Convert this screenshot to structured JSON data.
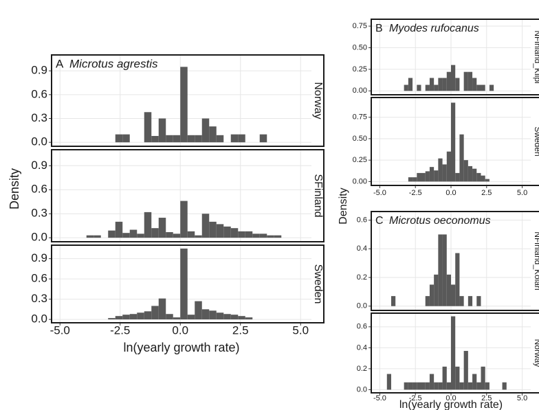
{
  "chart_data": [
    {
      "type": "histogram",
      "label": "A",
      "title": "Microtus agrestis",
      "xlabel": "ln(yearly growth rate)",
      "ylabel": "Density",
      "color": "#595959",
      "xlim": [
        -5.35,
        5.45
      ],
      "xticks": [
        {
          "value": -5,
          "label": "-5.0"
        },
        -2.5,
        {
          "value": 0,
          "label": "0.0"
        },
        2.5,
        {
          "value": 5,
          "label": "5.0"
        }
      ],
      "bins": [
        -4.5,
        -4.2,
        -3.9,
        -3.6,
        -3.3,
        -3.0,
        -2.7,
        -2.4,
        -2.1,
        -1.8,
        -1.5,
        -1.2,
        -0.9,
        -0.6,
        -0.3,
        0,
        0.3,
        0.6,
        0.9,
        1.2,
        1.5,
        1.8,
        2.1,
        2.4,
        2.7,
        3.0,
        3.3,
        3.6,
        3.9,
        4.2,
        4.5
      ],
      "facets": [
        {
          "strip": "Norway",
          "ylim": [
            -0.05,
            1.1
          ],
          "yticks": [
            {
              "value": 0,
              "label": "0.0"
            },
            0.3,
            0.6,
            0.9
          ],
          "values": [
            0,
            0,
            0,
            0,
            0,
            0,
            0.1,
            0.1,
            0,
            0,
            0.38,
            0.08,
            0.3,
            0.09,
            0.09,
            0.95,
            0.09,
            0.09,
            0.3,
            0.2,
            0.09,
            0,
            0.1,
            0.1,
            0,
            0,
            0.1,
            0,
            0,
            0
          ]
        },
        {
          "strip": "SFinland",
          "ylim": [
            -0.05,
            1.1
          ],
          "yticks": [
            {
              "value": 0,
              "label": "0.0"
            },
            0.3,
            0.6,
            0.9
          ],
          "values": [
            0,
            0,
            0.03,
            0.03,
            0,
            0.09,
            0.2,
            0.06,
            0.1,
            0.05,
            0.32,
            0.12,
            0.25,
            0.07,
            0.05,
            0.46,
            0.08,
            0.03,
            0.3,
            0.2,
            0.17,
            0.14,
            0.12,
            0.08,
            0.08,
            0.05,
            0.05,
            0.03,
            0.03,
            0
          ]
        },
        {
          "strip": "Sweden",
          "ylim": [
            -0.05,
            1.1
          ],
          "yticks": [
            {
              "value": 0,
              "label": "0.0"
            },
            0.3,
            0.6,
            0.9
          ],
          "values": [
            0,
            0,
            0,
            0,
            0,
            0.02,
            0.05,
            0.07,
            0.08,
            0.1,
            0.12,
            0.2,
            0.31,
            0.08,
            0.03,
            1.05,
            0.07,
            0.27,
            0.15,
            0.13,
            0.1,
            0.08,
            0.07,
            0.05,
            0.03,
            0,
            0,
            0,
            0,
            0
          ]
        }
      ]
    },
    {
      "type": "histogram",
      "label": "B",
      "title": "Myodes rufocanus",
      "ylabel": "Density",
      "color": "#595959",
      "xlim": [
        -5.6,
        5.6
      ],
      "xticks": [
        {
          "value": -5,
          "label": "-5.0"
        },
        -2.5,
        {
          "value": 0,
          "label": "0.0"
        },
        2.5,
        {
          "value": 5,
          "label": "5.0"
        }
      ],
      "bins": [
        -4.5,
        -4.2,
        -3.9,
        -3.6,
        -3.3,
        -3.0,
        -2.7,
        -2.4,
        -2.1,
        -1.8,
        -1.5,
        -1.2,
        -0.9,
        -0.6,
        -0.3,
        0,
        0.3,
        0.6,
        0.9,
        1.2,
        1.5,
        1.8,
        2.1,
        2.4,
        2.7,
        3.0,
        3.3,
        3.6,
        3.9,
        4.2,
        4.5
      ],
      "facets": [
        {
          "strip": "NFinland_Kilpi",
          "ylim": [
            -0.045,
            0.83
          ],
          "yticks": [
            {
              "value": 0,
              "label": "0.00"
            },
            {
              "value": 0.25,
              "label": "0.25"
            },
            {
              "value": 0.5,
              "label": "0.50"
            },
            {
              "value": 0.75,
              "label": "0.75"
            }
          ],
          "values": [
            0,
            0,
            0,
            0,
            0.07,
            0.15,
            0,
            0.07,
            0,
            0.07,
            0.15,
            0.07,
            0.15,
            0.15,
            0.22,
            0.3,
            0.15,
            0,
            0.22,
            0.22,
            0.15,
            0.07,
            0.07,
            0,
            0.07,
            0,
            0,
            0,
            0,
            0
          ]
        },
        {
          "strip": "Sweden",
          "ylim": [
            -0.045,
            0.98
          ],
          "yticks": [
            {
              "value": 0,
              "label": "0.00"
            },
            {
              "value": 0.25,
              "label": "0.25"
            },
            {
              "value": 0.5,
              "label": "0.50"
            },
            {
              "value": 0.75,
              "label": "0.75"
            }
          ],
          "values": [
            0,
            0,
            0,
            0,
            0,
            0.05,
            0.05,
            0.1,
            0.1,
            0.12,
            0.17,
            0.13,
            0.27,
            0.2,
            0.35,
            0.92,
            0.1,
            0.55,
            0.25,
            0.18,
            0.15,
            0.1,
            0.07,
            0.03,
            0,
            0,
            0,
            0,
            0,
            0
          ]
        }
      ]
    },
    {
      "type": "histogram",
      "label": "C",
      "title": "Microtus oeconomus",
      "xlabel": "ln(yearly growth rate)",
      "color": "#595959",
      "xlim": [
        -5.6,
        5.6
      ],
      "xticks": [
        {
          "value": -5,
          "label": "-5.0"
        },
        -2.5,
        {
          "value": 0,
          "label": "0.0"
        },
        2.5,
        {
          "value": 5,
          "label": "5.0"
        }
      ],
      "bins": [
        -4.5,
        -4.2,
        -3.9,
        -3.6,
        -3.3,
        -3.0,
        -2.7,
        -2.4,
        -2.1,
        -1.8,
        -1.5,
        -1.2,
        -0.9,
        -0.6,
        -0.3,
        0,
        0.3,
        0.6,
        0.9,
        1.2,
        1.5,
        1.8,
        2.1,
        2.4,
        2.7,
        3.0,
        3.3,
        3.6,
        3.9,
        4.2,
        4.5
      ],
      "facets": [
        {
          "strip": "NFinland_Kolari",
          "ylim": [
            -0.03,
            0.66
          ],
          "yticks": [
            {
              "value": 0,
              "label": "0.0"
            },
            0.2,
            0.4,
            0.6
          ],
          "values": [
            0,
            0.07,
            0,
            0,
            0,
            0,
            0,
            0,
            0,
            0.07,
            0.15,
            0.22,
            0.5,
            0.5,
            0.22,
            0.15,
            0.37,
            0.07,
            0,
            0.07,
            0,
            0.07,
            0,
            0,
            0,
            0,
            0,
            0,
            0,
            0
          ]
        },
        {
          "strip": "Norway",
          "ylim": [
            -0.03,
            0.73
          ],
          "yticks": [
            {
              "value": 0,
              "label": "0.0"
            },
            0.2,
            0.4,
            0.6
          ],
          "values": [
            0.15,
            0,
            0,
            0,
            0.07,
            0.07,
            0.07,
            0.07,
            0.07,
            0.07,
            0.15,
            0.07,
            0.07,
            0.22,
            0.07,
            0.7,
            0.22,
            0.07,
            0.37,
            0.07,
            0.15,
            0.07,
            0.22,
            0.07,
            0,
            0,
            0,
            0.07,
            0,
            0
          ]
        }
      ]
    }
  ]
}
